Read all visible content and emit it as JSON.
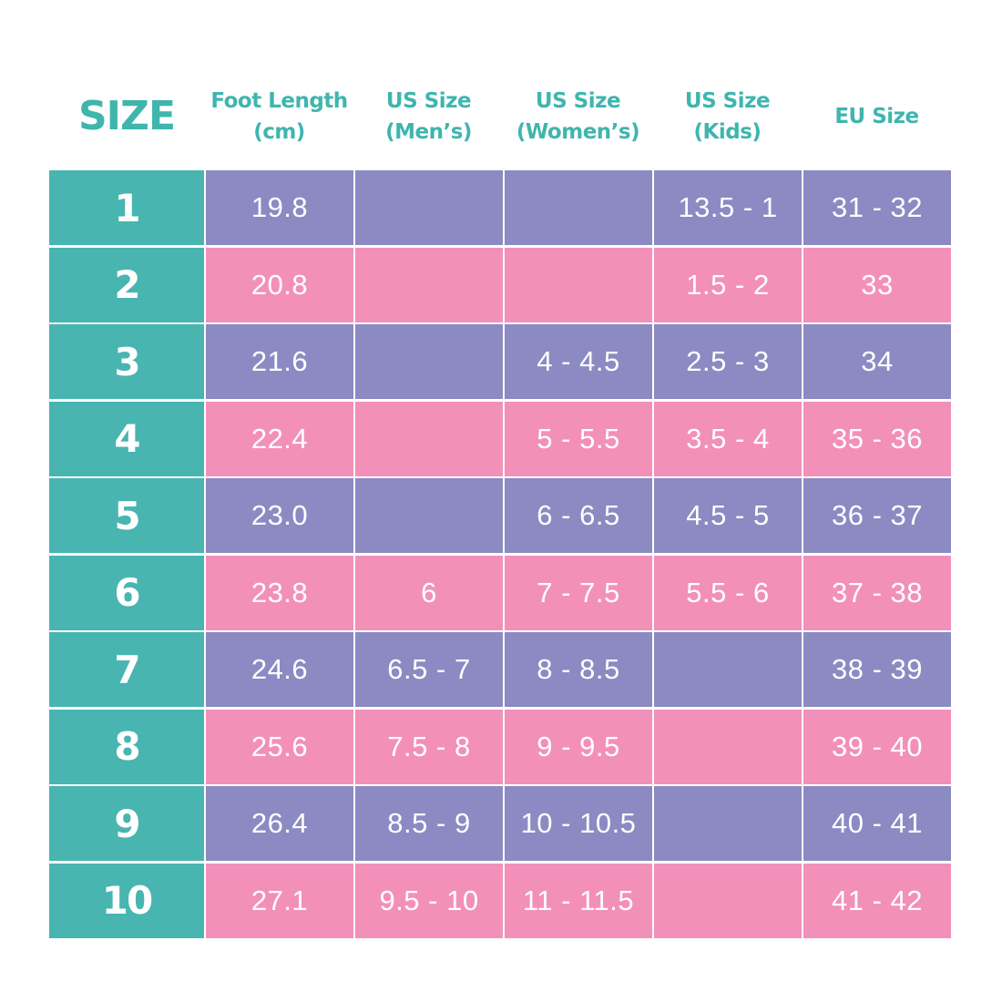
{
  "colors": {
    "header_text": "#3fb5ae",
    "size_column": "#48b5b1",
    "purple_row": "#8b8ac3",
    "pink_row": "#f290ba",
    "cell_text": "#ffffff"
  },
  "headers": [
    "SIZE",
    "Foot Length\n(cm)",
    "US Size\n(Men’s)",
    "US Size\n(Women’s)",
    "US Size\n(Kids)",
    "EU Size"
  ],
  "rows": [
    [
      "1",
      "19.8",
      "",
      "",
      "13.5 - 1",
      "31 - 32"
    ],
    [
      "2",
      "20.8",
      "",
      "",
      "1.5 - 2",
      "33"
    ],
    [
      "3",
      "21.6",
      "",
      "4 - 4.5",
      "2.5 - 3",
      "34"
    ],
    [
      "4",
      "22.4",
      "",
      "5 - 5.5",
      "3.5 - 4",
      "35 - 36"
    ],
    [
      "5",
      "23.0",
      "",
      "6 - 6.5",
      "4.5 - 5",
      "36 - 37"
    ],
    [
      "6",
      "23.8",
      "6",
      "7 - 7.5",
      "5.5 - 6",
      "37 - 38"
    ],
    [
      "7",
      "24.6",
      "6.5 - 7",
      "8 - 8.5",
      "",
      "38 - 39"
    ],
    [
      "8",
      "25.6",
      "7.5 - 8",
      "9 - 9.5",
      "",
      "39 - 40"
    ],
    [
      "9",
      "26.4",
      "8.5 - 9",
      "10 - 10.5",
      "",
      "40 - 41"
    ],
    [
      "10",
      "27.1",
      "9.5 - 10",
      "11 - 11.5",
      "",
      "41 - 42"
    ]
  ]
}
